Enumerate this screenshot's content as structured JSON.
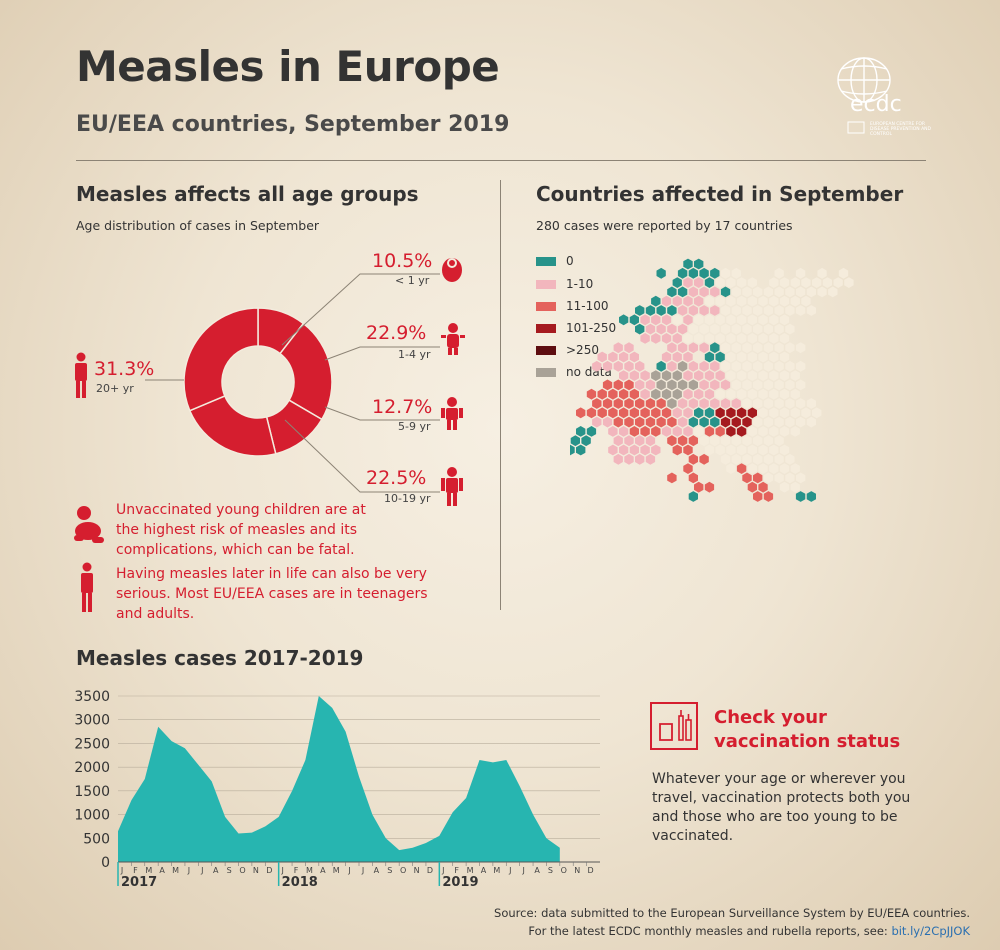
{
  "title": "Measles in Europe",
  "subtitle": "EU/EEA countries, September 2019",
  "logo": {
    "name": "ecdc",
    "tagline": "EUROPEAN CENTRE FOR DISEASE PREVENTION AND CONTROL"
  },
  "age_section": {
    "heading": "Measles affects all age groups",
    "subheading": "Age distribution of cases in September",
    "groups": [
      {
        "pct": "10.5%",
        "label": "< 1 yr",
        "value": 10.5,
        "icon": "baby-icon"
      },
      {
        "pct": "22.9%",
        "label": "1-4 yr",
        "value": 22.9,
        "icon": "toddler-icon"
      },
      {
        "pct": "12.7%",
        "label": "5-9 yr",
        "value": 12.7,
        "icon": "child-icon"
      },
      {
        "pct": "22.5%",
        "label": "10-19 yr",
        "value": 22.5,
        "icon": "teen-icon"
      },
      {
        "pct": "31.3%",
        "label": "20+ yr",
        "value": 31.3,
        "icon": "adult-icon"
      }
    ],
    "note1": "Unvaccinated young children are at the highest risk of measles and its complications, which can be fatal.",
    "note2": "Having measles later in life can also be very serious. Most EU/EEA cases are in teenagers and adults."
  },
  "map_section": {
    "heading": "Countries affected in September",
    "subheading": "280 cases were reported by 17 countries",
    "legend": [
      {
        "label": "0",
        "color": "#27938a"
      },
      {
        "label": "1-10",
        "color": "#f2b6bd"
      },
      {
        "label": "11-100",
        "color": "#e4625c"
      },
      {
        "label": "101-250",
        "color": "#a51a1f"
      },
      {
        "label": ">250",
        "color": "#5e0d10"
      },
      {
        "label": "no data",
        "color": "#a9a297"
      }
    ]
  },
  "cases_section": {
    "heading": "Measles cases 2017-2019"
  },
  "cta": {
    "title_line1": "Check your",
    "title_line2": "vaccination status",
    "body": "Whatever your age or wherever you travel, vaccination protects both you and those who are too young to be vaccinated."
  },
  "source": {
    "line1": "Source: data submitted to the European Surveillance System by EU/EEA countries.",
    "line2": "For the latest ECDC monthly measles and rubella reports, see:",
    "link": "bit.ly/2CpJJOK"
  },
  "colors": {
    "accent_red": "#d51e2f",
    "teal": "#27b5b0",
    "dark_text": "#333333"
  },
  "chart_data": [
    {
      "type": "pie",
      "categories": [
        "< 1 yr",
        "1-4 yr",
        "5-9 yr",
        "10-19 yr",
        "20+ yr"
      ],
      "values": [
        10.5,
        22.9,
        12.7,
        22.5,
        31.3
      ],
      "title": "Age distribution of cases in September"
    },
    {
      "type": "area",
      "title": "Measles cases 2017-2019",
      "x_months": [
        "J",
        "F",
        "M",
        "A",
        "M",
        "J",
        "J",
        "A",
        "S",
        "O",
        "N",
        "D",
        "J",
        "F",
        "M",
        "A",
        "M",
        "J",
        "J",
        "A",
        "S",
        "O",
        "N",
        "D",
        "J",
        "F",
        "M",
        "A",
        "M",
        "J",
        "J",
        "A",
        "S",
        "O",
        "N",
        "D"
      ],
      "years": [
        "2017",
        "2018",
        "2019"
      ],
      "values": [
        650,
        1300,
        1750,
        2850,
        2550,
        2400,
        2050,
        1700,
        950,
        600,
        620,
        750,
        950,
        1500,
        2150,
        3500,
        3250,
        2750,
        1800,
        1000,
        500,
        250,
        300,
        400,
        550,
        1050,
        1350,
        2150,
        2100,
        2150,
        1600,
        1000,
        500,
        300,
        null,
        null
      ],
      "yticks": [
        0,
        500,
        1000,
        1500,
        2000,
        2500,
        3000,
        3500
      ],
      "ylim": [
        0,
        3500
      ]
    }
  ]
}
